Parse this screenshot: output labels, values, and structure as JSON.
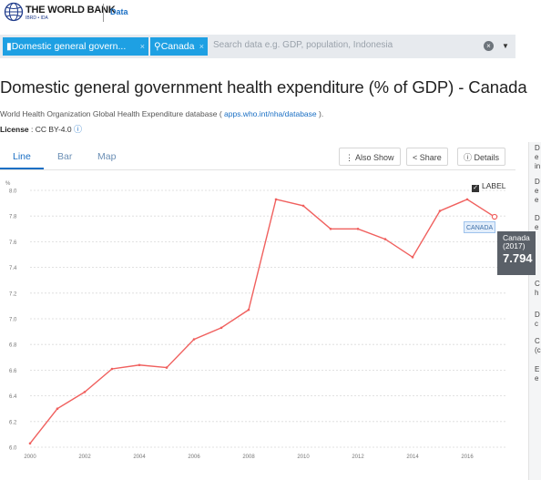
{
  "brand": {
    "name": "THE WORLD BANK",
    "sub": "IBRD • IDA",
    "section": "Data"
  },
  "search": {
    "chips": [
      {
        "label": "Domestic general govern...",
        "icon": "chart-bars-icon"
      },
      {
        "label": "Canada",
        "icon": "location-pin-icon"
      }
    ],
    "placeholder": "Search data e.g. GDP, population, Indonesia"
  },
  "page": {
    "title": "Domestic general government health expenditure (% of GDP) - Canada",
    "source_prefix": "World Health Organization Global Health Expenditure database ( ",
    "source_link": "apps.who.int/nha/database",
    "source_suffix": " ).",
    "license_label": "License",
    "license_value": " : CC BY-4.0 "
  },
  "tabs": [
    {
      "label": "Line",
      "active": true
    },
    {
      "label": "Bar",
      "active": false
    },
    {
      "label": "Map",
      "active": false
    }
  ],
  "toolbar": {
    "also_show": "Also Show",
    "share": "Share",
    "details": "Details"
  },
  "legend": {
    "label_toggle": "LABEL",
    "series_tag": "CANADA"
  },
  "tooltip": {
    "country": "Canada",
    "year": "(2017)",
    "value": "7.794"
  },
  "sidepanel_items": [
    "D",
    "e",
    "in",
    "D",
    "e",
    "e",
    "D",
    "e",
    "C",
    "h",
    "D",
    "c",
    "C",
    "(c",
    "E",
    "e"
  ],
  "chart_data": {
    "type": "line",
    "ylabel": "%",
    "ylim": [
      6.0,
      8.0
    ],
    "y_ticks": [
      "6.0",
      "6.2",
      "6.4",
      "6.6",
      "6.8",
      "7.0",
      "7.2",
      "7.4",
      "7.6",
      "7.8",
      "8.0"
    ],
    "x_ticks": [
      "2000",
      "2002",
      "2004",
      "2006",
      "2008",
      "2010",
      "2012",
      "2014",
      "2016"
    ],
    "x": [
      2000,
      2001,
      2002,
      2003,
      2004,
      2005,
      2006,
      2007,
      2008,
      2009,
      2010,
      2011,
      2012,
      2013,
      2014,
      2015,
      2016,
      2017
    ],
    "series": [
      {
        "name": "Canada",
        "color": "#f0605e",
        "values": [
          6.03,
          6.3,
          6.43,
          6.61,
          6.64,
          6.62,
          6.84,
          6.93,
          7.07,
          7.93,
          7.88,
          7.7,
          7.7,
          7.62,
          7.48,
          7.84,
          7.93,
          7.794
        ]
      }
    ]
  }
}
